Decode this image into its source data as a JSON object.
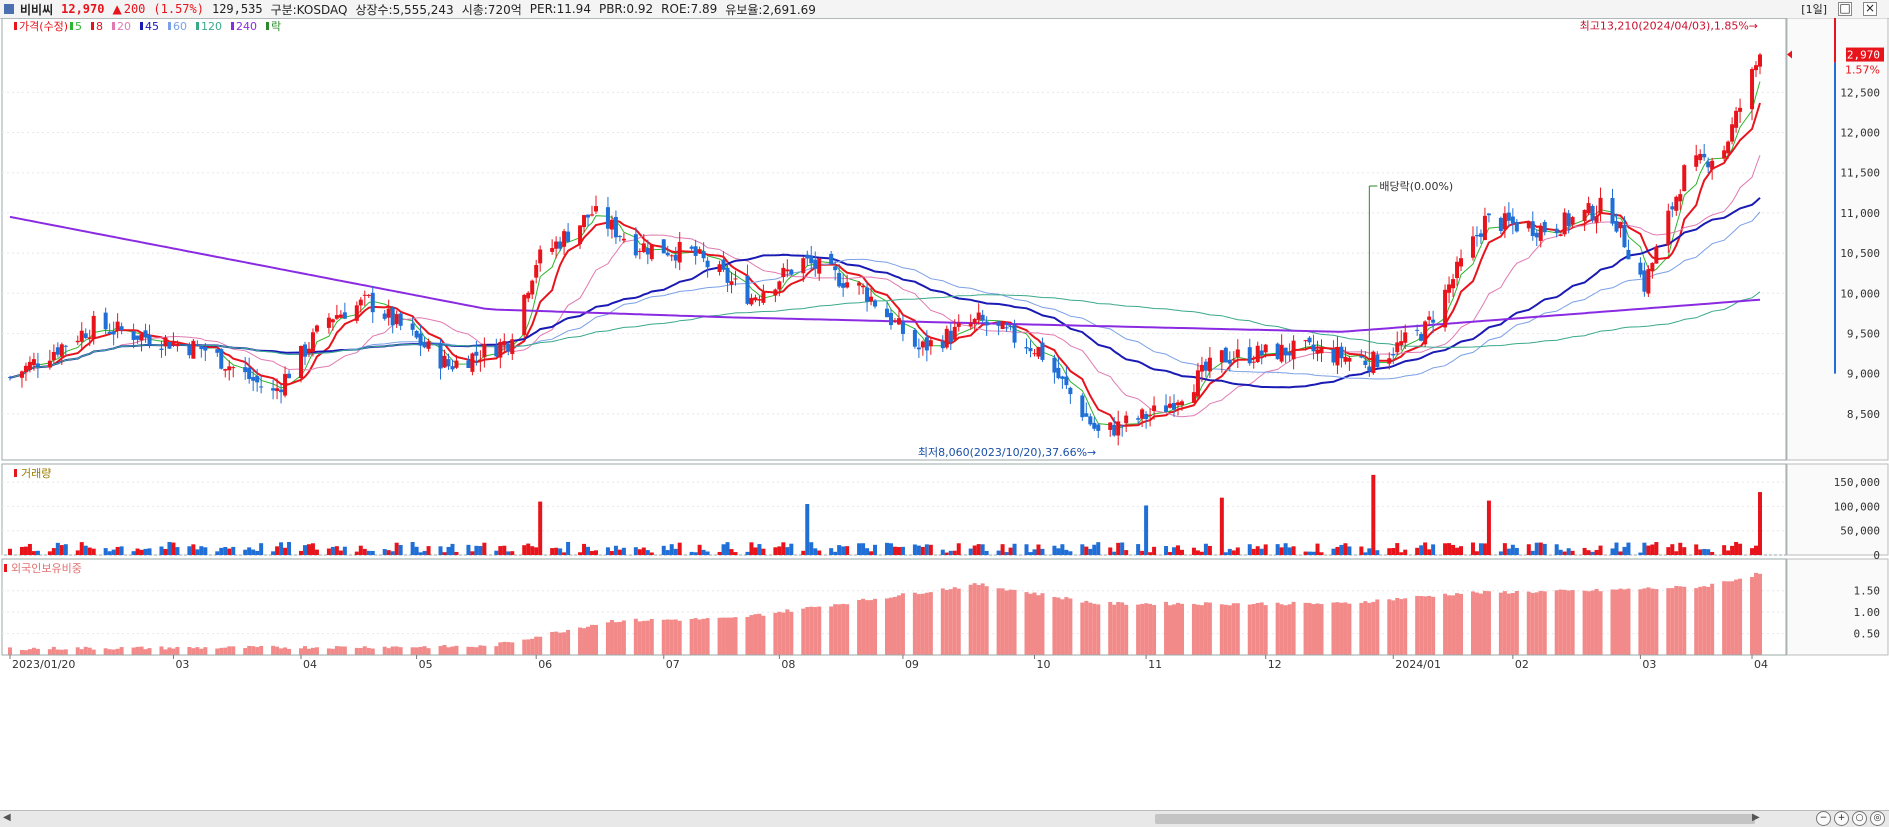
{
  "header": {
    "name": "비비씨",
    "price": "12,970",
    "change_arrow": "▲",
    "change": "200",
    "change_pct": "(1.57%)",
    "volume": "129,535",
    "market": "구분:KOSDAQ",
    "shares": "상장수:5,555,243",
    "mktcap": "시총:720억",
    "per": "PER:11.94",
    "pbr": "PBR:0.92",
    "roe": "ROE:7.89",
    "float": "유보율:2,691.69",
    "period": "[1일]"
  },
  "legend": {
    "price_label": "가격(수정)",
    "ma5": "5",
    "ma8": "8",
    "ma20": "20",
    "ma45": "45",
    "ma60": "60",
    "ma120": "120",
    "ma240": "240",
    "dividend_label": "락"
  },
  "annotations": {
    "high": "최고13,210(2024/04/03),1.85%→",
    "low": "최저8,060(2023/10/20),37.66%→",
    "dividend": "배당락(0.00%)",
    "price_tag": "12,970",
    "pct_tag": "1.57%"
  },
  "volume_panel": {
    "title": "거래량"
  },
  "foreign_panel": {
    "title": "외국인보유비중"
  },
  "colors": {
    "up": "#e8141c",
    "down": "#1f6fd6",
    "ma5": "#2db52d",
    "ma8": "#e8141c",
    "ma20": "#e07ab0",
    "ma45": "#1a1ab4",
    "ma60": "#7aa0e6",
    "ma120": "#3aa88a",
    "ma240": "#8a2be2",
    "foreign": "#f28a8a"
  },
  "chart_data": [
    {
      "type": "candlestick",
      "title": "비비씨",
      "x_start": "2023-01-20",
      "x_end": "2024-04-03",
      "xlabel_ticks": [
        "2023/01/20",
        "03",
        "04",
        "05",
        "06",
        "07",
        "08",
        "09",
        "10",
        "11",
        "12",
        "2024/01",
        "02",
        "03",
        "04"
      ],
      "yticks": [
        8500,
        9000,
        9500,
        10000,
        10500,
        11000,
        11500,
        12000,
        12500
      ],
      "ylim": [
        8000,
        13350
      ],
      "last_close": 12970,
      "high": {
        "value": 13210,
        "date": "2024-04-03"
      },
      "low": {
        "value": 8060,
        "date": "2023-10-20"
      },
      "key_points": [
        {
          "date": "2023-01-20",
          "close": 8950
        },
        {
          "date": "2023-02-10",
          "close": 9600
        },
        {
          "date": "2023-03-10",
          "close": 9300
        },
        {
          "date": "2023-03-27",
          "close": 8750
        },
        {
          "date": "2023-04-10",
          "close": 9700
        },
        {
          "date": "2023-04-20",
          "close": 9900
        },
        {
          "date": "2023-05-10",
          "close": 9100
        },
        {
          "date": "2023-05-25",
          "close": 9400
        },
        {
          "date": "2023-06-01",
          "close": 10400
        },
        {
          "date": "2023-06-15",
          "close": 11000
        },
        {
          "date": "2023-06-26",
          "close": 10600
        },
        {
          "date": "2023-07-10",
          "close": 10500
        },
        {
          "date": "2023-07-25",
          "close": 9950
        },
        {
          "date": "2023-08-07",
          "close": 10400
        },
        {
          "date": "2023-08-22",
          "close": 10050
        },
        {
          "date": "2023-09-05",
          "close": 9300
        },
        {
          "date": "2023-09-20",
          "close": 9650
        },
        {
          "date": "2023-10-05",
          "close": 9300
        },
        {
          "date": "2023-10-20",
          "close": 8250
        },
        {
          "date": "2023-11-05",
          "close": 8550
        },
        {
          "date": "2023-11-20",
          "close": 9200
        },
        {
          "date": "2023-12-10",
          "close": 9300
        },
        {
          "date": "2023-12-28",
          "close": 9150
        },
        {
          "date": "2024-01-10",
          "close": 9550
        },
        {
          "date": "2024-01-25",
          "close": 10900
        },
        {
          "date": "2024-02-10",
          "close": 10800
        },
        {
          "date": "2024-02-25",
          "close": 11100
        },
        {
          "date": "2024-03-05",
          "close": 10100
        },
        {
          "date": "2024-03-15",
          "close": 11500
        },
        {
          "date": "2024-03-25",
          "close": 11800
        },
        {
          "date": "2024-04-03",
          "close": 12970
        }
      ],
      "moving_averages": [
        "5",
        "8",
        "20",
        "45",
        "60",
        "120",
        "240"
      ]
    },
    {
      "type": "bar",
      "title": "거래량",
      "yticks": [
        0,
        50000,
        100000,
        150000
      ],
      "ylim": [
        0,
        175000
      ],
      "peaks": [
        {
          "date": "2023-06-02",
          "value": 110000
        },
        {
          "date": "2023-08-08",
          "value": 105000
        },
        {
          "date": "2023-11-01",
          "value": 102000
        },
        {
          "date": "2023-11-20",
          "value": 118000
        },
        {
          "date": "2023-12-28",
          "value": 165000
        },
        {
          "date": "2024-01-26",
          "value": 112000
        },
        {
          "date": "2024-04-03",
          "value": 129535
        }
      ]
    },
    {
      "type": "bar",
      "title": "외국인보유비중",
      "yticks": [
        0.5,
        1.0,
        1.5
      ],
      "ylim": [
        0,
        2.1
      ],
      "key_points": [
        {
          "date": "2023-01-20",
          "value": 0.15
        },
        {
          "date": "2023-05-20",
          "value": 0.2
        },
        {
          "date": "2023-06-20",
          "value": 0.8
        },
        {
          "date": "2023-07-20",
          "value": 0.85
        },
        {
          "date": "2023-08-20",
          "value": 1.25
        },
        {
          "date": "2023-09-20",
          "value": 1.65
        },
        {
          "date": "2023-10-20",
          "value": 1.2
        },
        {
          "date": "2023-12-20",
          "value": 1.2
        },
        {
          "date": "2024-01-20",
          "value": 1.45
        },
        {
          "date": "2024-02-20",
          "value": 1.5
        },
        {
          "date": "2024-03-20",
          "value": 1.6
        },
        {
          "date": "2024-04-03",
          "value": 1.9
        }
      ]
    }
  ]
}
